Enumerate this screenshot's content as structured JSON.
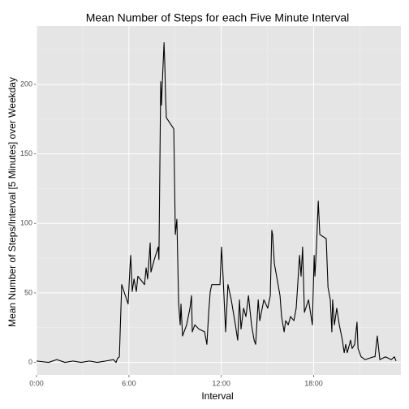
{
  "chart_data": {
    "type": "line",
    "title": "Mean Number of Steps for each Five Minute Interval",
    "x_label": "Interval",
    "y_label": "Mean Number of Steps/Interval [5 Minutes] over Weekday",
    "x": [
      0,
      47,
      79,
      111,
      142,
      174,
      206,
      237,
      269,
      300,
      310,
      316,
      323,
      326,
      332,
      357,
      364,
      367,
      373,
      380,
      389,
      395,
      421,
      427,
      433,
      443,
      446,
      459,
      474,
      477,
      484,
      487,
      490,
      497,
      500,
      503,
      506,
      535,
      541,
      547,
      554,
      560,
      563,
      569,
      585,
      598,
      604,
      607,
      617,
      633,
      655,
      664,
      671,
      677,
      683,
      715,
      721,
      727,
      737,
      746,
      759,
      775,
      784,
      791,
      797,
      807,
      816,
      826,
      838,
      848,
      854,
      864,
      870,
      886,
      901,
      911,
      917,
      920,
      927,
      949,
      955,
      965,
      971,
      981,
      990,
      1003,
      1012,
      1018,
      1025,
      1031,
      1037,
      1044,
      1060,
      1075,
      1082,
      1085,
      1091,
      1098,
      1104,
      1129,
      1136,
      1145,
      1151,
      1154,
      1161,
      1170,
      1180,
      1192,
      1199,
      1205,
      1211,
      1224,
      1230,
      1240,
      1249,
      1253,
      1265,
      1281,
      1313,
      1319,
      1328,
      1338,
      1360,
      1382,
      1395,
      1401
    ],
    "series": [
      {
        "name": "steps",
        "color": "#000000",
        "values": [
          1,
          0,
          2,
          0,
          1,
          0,
          1,
          0,
          1,
          2,
          0,
          3,
          4,
          22,
          56,
          42,
          68,
          77,
          51,
          60,
          51,
          62,
          56,
          68,
          60,
          86,
          65,
          74,
          83,
          74,
          202,
          185,
          200,
          230,
          214,
          191,
          176,
          168,
          92,
          103,
          42,
          27,
          42,
          19,
          27,
          39,
          48,
          22,
          27,
          24,
          22,
          13,
          36,
          51,
          56,
          56,
          83,
          62,
          22,
          56,
          45,
          27,
          16,
          45,
          24,
          39,
          33,
          48,
          27,
          16,
          13,
          45,
          30,
          45,
          39,
          48,
          95,
          92,
          71,
          48,
          33,
          22,
          30,
          27,
          33,
          30,
          39,
          56,
          77,
          62,
          83,
          36,
          45,
          27,
          77,
          62,
          83,
          116,
          92,
          89,
          54,
          45,
          22,
          45,
          27,
          39,
          27,
          16,
          7,
          13,
          7,
          16,
          10,
          13,
          29,
          10,
          4,
          2,
          4,
          4,
          19,
          2,
          4,
          2,
          4,
          1
        ]
      }
    ],
    "xlim": [
      0,
      1420
    ],
    "xticks": [
      {
        "value": 0,
        "label": "0:00"
      },
      {
        "value": 360,
        "label": "6:00"
      },
      {
        "value": 720,
        "label": "12:00"
      },
      {
        "value": 1080,
        "label": "18:00"
      }
    ],
    "x_minor_ticks": [
      180,
      540,
      900,
      1260
    ],
    "ylim": [
      -9,
      242
    ],
    "yticks": [
      0,
      50,
      100,
      150,
      200
    ],
    "y_minor_ticks": [
      25,
      75,
      125,
      175,
      225
    ],
    "grid": true
  }
}
